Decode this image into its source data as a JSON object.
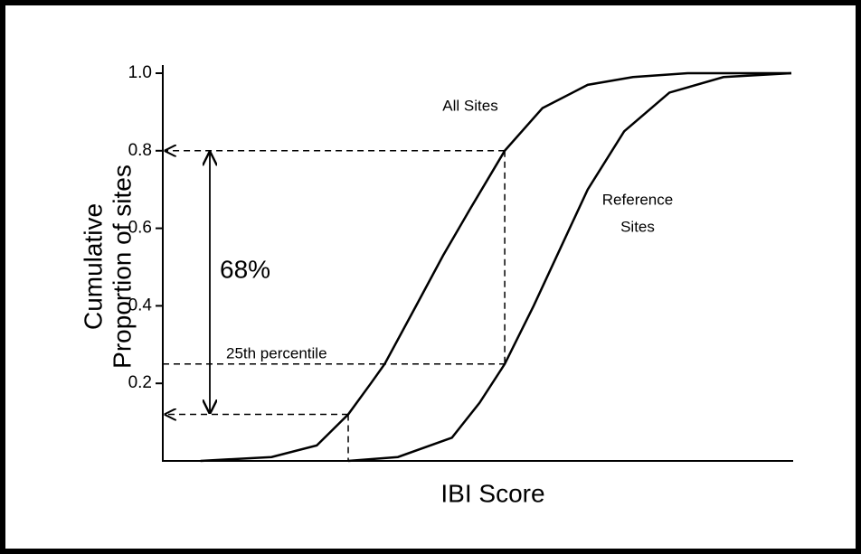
{
  "chart_data": {
    "type": "line",
    "xlabel": "IBI Score",
    "ylabel": [
      "Cumulative",
      "Proportion of sites"
    ],
    "xlim": [
      0,
      100
    ],
    "ylim": [
      0,
      1
    ],
    "yticks": [
      0.2,
      0.4,
      0.6,
      0.8,
      {
        "value": 1,
        "label": "1.0"
      }
    ],
    "series": [
      {
        "name": "All Sites",
        "color": "#000000",
        "x": [
          6,
          17.3,
          24.5,
          29.5,
          33.1,
          35.3,
          40.3,
          44.6,
          48.9,
          54.4,
          60.4,
          67.6,
          74.8,
          83.5,
          100
        ],
        "values": [
          0,
          0.01,
          0.04,
          0.12,
          0.2,
          0.25,
          0.4,
          0.53,
          0.65,
          0.8,
          0.91,
          0.97,
          0.99,
          1,
          1
        ]
      },
      {
        "name": "Reference Sites",
        "color": "#000000",
        "x": [
          29.5,
          37.4,
          46,
          50.4,
          54.4,
          59,
          63.3,
          67.6,
          73.4,
          80.6,
          89.2,
          100
        ],
        "values": [
          0,
          0.01,
          0.06,
          0.15,
          0.25,
          0.4,
          0.55,
          0.7,
          0.85,
          0.95,
          0.99,
          1
        ]
      }
    ],
    "annotations": {
      "all_sites": "All Sites",
      "reference": [
        "Reference",
        "Sites"
      ],
      "range": "68%",
      "percentile": "25th percentile"
    },
    "guides": {
      "upper": {
        "x": 54.4,
        "y": 0.8
      },
      "lower": {
        "x": 29.5,
        "y": 0.12
      },
      "p25": 0.25
    }
  }
}
